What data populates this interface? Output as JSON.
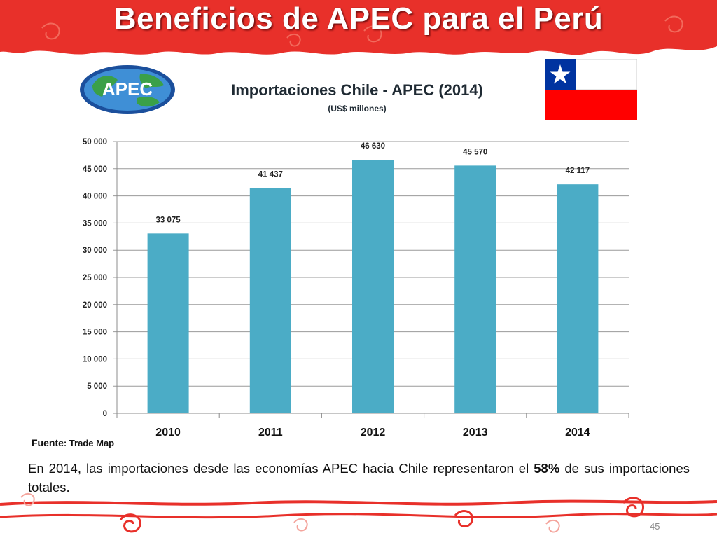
{
  "slide": {
    "title": "Beneficios de APEC para el Perú",
    "page_number": "45"
  },
  "logo": {
    "text": "APEC"
  },
  "source": {
    "label": "Fuente",
    "value": ": Trade Map"
  },
  "note": {
    "before": "En 2014, las importaciones desde las economías APEC hacia Chile representaron el ",
    "highlight": "58%",
    "after": " de sus importaciones totales."
  },
  "colors": {
    "banner": "#e8302a",
    "bar": "#4bacc6",
    "flag_blue": "#0033a0",
    "flag_red": "#ff0000"
  },
  "chart_data": {
    "type": "bar",
    "title": "Importaciones Chile - APEC  (2014)",
    "subtitle": "(US$ millones)",
    "categories": [
      "2010",
      "2011",
      "2012",
      "2013",
      "2014"
    ],
    "values": [
      33075,
      41437,
      46630,
      45570,
      42117
    ],
    "value_labels": [
      "33 075",
      "41 437",
      "46 630",
      "45 570",
      "42 117"
    ],
    "ylim": [
      0,
      50000
    ],
    "yticks": [
      0,
      5000,
      10000,
      15000,
      20000,
      25000,
      30000,
      35000,
      40000,
      45000,
      50000
    ],
    "ytick_labels": [
      "0",
      "5 000",
      "10 000",
      "15 000",
      "20 000",
      "25 000",
      "30 000",
      "35 000",
      "40 000",
      "45 000",
      "50 000"
    ],
    "grid": true,
    "legend": "none"
  }
}
